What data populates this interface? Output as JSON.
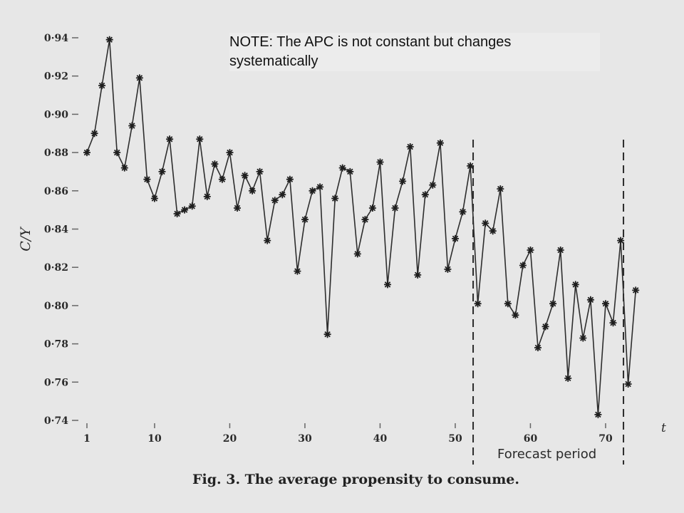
{
  "note": "NOTE: The APC is not constant but changes systematically",
  "chart_data": {
    "type": "line",
    "title": "Fig. 3. The average propensity to consume.",
    "ylabel": "C/Y",
    "xlabel": "t",
    "ylim": [
      0.74,
      0.94
    ],
    "xlim": [
      1,
      74
    ],
    "yticks": [
      "0·74",
      "0·76",
      "0·78",
      "0·80",
      "0·82",
      "0·84",
      "0·86",
      "0·88",
      "0·90",
      "0·92",
      "0·94"
    ],
    "xticks": [
      "1",
      "10",
      "20",
      "30",
      "40",
      "50",
      "60",
      "70"
    ],
    "forecast_label": "Forecast period",
    "forecast_bounds": [
      52,
      72
    ],
    "series": [
      {
        "x": [
          1,
          2,
          3,
          4,
          5,
          6,
          7,
          8,
          9,
          10,
          11,
          12,
          13,
          14,
          15,
          16,
          17,
          18,
          19,
          20,
          21,
          22,
          23,
          24,
          25,
          26,
          27,
          28,
          29,
          30,
          31,
          32,
          33,
          34,
          35,
          36,
          37,
          38,
          39,
          40,
          41,
          42,
          43,
          44,
          45,
          46,
          47,
          48,
          49,
          50,
          51,
          52,
          53,
          54,
          55,
          56,
          57,
          58,
          59,
          60,
          61,
          62,
          63,
          64,
          65,
          66,
          67,
          68,
          69,
          70,
          71,
          72,
          73,
          74
        ],
        "values": [
          0.88,
          0.89,
          0.915,
          0.939,
          0.88,
          0.872,
          0.894,
          0.919,
          0.866,
          0.856,
          0.87,
          0.887,
          0.848,
          0.85,
          0.852,
          0.887,
          0.857,
          0.874,
          0.866,
          0.88,
          0.851,
          0.868,
          0.86,
          0.87,
          0.834,
          0.855,
          0.858,
          0.866,
          0.818,
          0.845,
          0.86,
          0.862,
          0.785,
          0.856,
          0.872,
          0.87,
          0.827,
          0.845,
          0.851,
          0.875,
          0.811,
          0.851,
          0.865,
          0.883,
          0.816,
          0.858,
          0.863,
          0.885,
          0.819,
          0.835,
          0.849,
          0.873,
          0.801,
          0.843,
          0.839,
          0.861,
          0.801,
          0.795,
          0.821,
          0.829,
          0.778,
          0.789,
          0.801,
          0.829,
          0.762,
          0.811,
          0.783,
          0.803,
          0.743,
          0.801,
          0.791,
          0.834,
          0.759,
          0.808
        ]
      }
    ]
  }
}
